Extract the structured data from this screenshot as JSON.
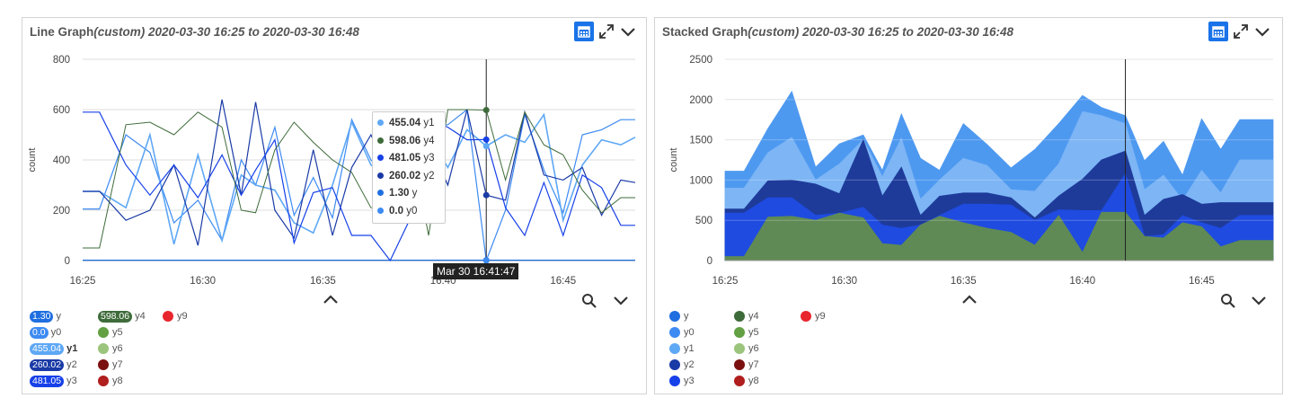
{
  "colors": {
    "y": "#1f6fe0",
    "y0": "#3d8bf2",
    "y1": "#5ea8f5",
    "y2": "#1a3aa6",
    "y3": "#1640e8",
    "y4": "#3e6b3a",
    "y5": "#62a043",
    "y6": "#9bc47c",
    "y7": "#7a1010",
    "y8": "#b01e1e",
    "y9": "#e8262e"
  },
  "line_panel": {
    "title_main": "Line Graph",
    "title_custom": "(custom)",
    "title_range": "2020-03-30 16:25 to 2020-03-30 16:48",
    "tooltip_rows": [
      {
        "value": "455.04",
        "name": "y1",
        "color": "#5ea8f5"
      },
      {
        "value": "598.06",
        "name": "y4",
        "color": "#3e6b3a"
      },
      {
        "value": "481.05",
        "name": "y3",
        "color": "#1640e8"
      },
      {
        "value": "260.02",
        "name": "y2",
        "color": "#1a3aa6"
      },
      {
        "value": "1.30",
        "name": "y",
        "color": "#1f6fe0"
      },
      {
        "value": "0.0",
        "name": "y0",
        "color": "#3d8bf2"
      }
    ],
    "x_tooltip": "Mar 30 16:41:47",
    "legend": [
      {
        "name": "y",
        "value": "1.30",
        "bold": false
      },
      {
        "name": "y0",
        "value": "0.0",
        "bold": false
      },
      {
        "name": "y1",
        "value": "455.04",
        "bold": true
      },
      {
        "name": "y2",
        "value": "260.02",
        "bold": false
      },
      {
        "name": "y3",
        "value": "481.05",
        "bold": false
      },
      {
        "name": "y4",
        "value": "598.06",
        "bold": false
      },
      {
        "name": "y5",
        "value": "",
        "bold": false
      },
      {
        "name": "y6",
        "value": "",
        "bold": false
      },
      {
        "name": "y7",
        "value": "",
        "bold": false
      },
      {
        "name": "y8",
        "value": "",
        "bold": false
      },
      {
        "name": "y9",
        "value": "",
        "bold": false
      }
    ]
  },
  "stack_panel": {
    "title_main": "Stacked Graph",
    "title_custom": "(custom)",
    "title_range": "2020-03-30 16:25 to 2020-03-30 16:48",
    "legend": [
      "y",
      "y0",
      "y1",
      "y2",
      "y3",
      "y4",
      "y5",
      "y6",
      "y7",
      "y8",
      "y9"
    ]
  },
  "chart_data": [
    {
      "type": "line",
      "title": "Line Graph(custom) 2020-03-30 16:25 to 2020-03-30 16:48",
      "ylabel": "count",
      "xlabel": "",
      "ylim": [
        0,
        800
      ],
      "yticks": [
        "0",
        "200",
        "400",
        "600",
        "800"
      ],
      "xlim": [
        0,
        23
      ],
      "xticks": [
        {
          "v": 0,
          "label": "16:25"
        },
        {
          "v": 5,
          "label": "16:30"
        },
        {
          "v": 10,
          "label": "16:35"
        },
        {
          "v": 15,
          "label": "16:40"
        },
        {
          "v": 20,
          "label": "16:45"
        }
      ],
      "cursor_x": 16.8,
      "x": [
        0,
        0.7,
        1.8,
        2.8,
        3.8,
        4.8,
        5.8,
        6.6,
        7.2,
        8.0,
        8.8,
        9.6,
        10.4,
        11.2,
        12.0,
        12.8,
        13.6,
        14.4,
        15.2,
        16.0,
        16.8,
        17.6,
        18.4,
        19.2,
        20.0,
        20.8,
        21.6,
        22.4,
        23.0
      ],
      "series": [
        {
          "name": "y",
          "values": [
            1.3,
            1.3,
            1.3,
            1.3,
            1.3,
            1.3,
            1.3,
            1.3,
            1.3,
            1.3,
            1.3,
            1.3,
            1.3,
            1.3,
            1.3,
            1.3,
            1.3,
            1.3,
            1.3,
            1.3,
            1.3,
            1.3,
            1.3,
            1.3,
            1.3,
            1.3,
            1.3,
            1.3,
            1.3
          ]
        },
        {
          "name": "y0",
          "values": [
            205,
            205,
            500,
            430,
            150,
            240,
            80,
            400,
            300,
            530,
            180,
            330,
            170,
            560,
            400,
            320,
            250,
            530,
            540,
            600,
            0,
            200,
            580,
            360,
            190,
            500,
            520,
            560,
            560
          ]
        },
        {
          "name": "y1",
          "values": [
            275,
            275,
            210,
            500,
            65,
            420,
            80,
            340,
            300,
            280,
            150,
            110,
            300,
            550,
            380,
            330,
            250,
            500,
            370,
            520,
            455,
            500,
            470,
            580,
            160,
            380,
            480,
            460,
            490
          ]
        },
        {
          "name": "y2",
          "values": [
            275,
            275,
            160,
            200,
            380,
            60,
            640,
            260,
            630,
            200,
            90,
            440,
            100,
            370,
            500,
            330,
            320,
            470,
            300,
            600,
            260,
            240,
            590,
            340,
            320,
            370,
            180,
            320,
            310
          ]
        },
        {
          "name": "y3",
          "values": [
            590,
            590,
            380,
            260,
            380,
            250,
            420,
            260,
            360,
            480,
            70,
            270,
            290,
            100,
            100,
            0,
            160,
            560,
            530,
            480,
            481,
            210,
            100,
            310,
            100,
            340,
            290,
            140,
            140
          ]
        },
        {
          "name": "y4",
          "values": [
            50,
            50,
            540,
            550,
            500,
            590,
            530,
            200,
            190,
            440,
            550,
            470,
            400,
            350,
            210,
            200,
            500,
            100,
            600,
            600,
            598,
            320,
            590,
            460,
            420,
            280,
            190,
            250,
            250
          ]
        }
      ]
    },
    {
      "type": "area",
      "title": "Stacked Graph(custom) 2020-03-30 16:25 to 2020-03-30 16:48",
      "ylabel": "count",
      "xlabel": "",
      "stacked": true,
      "ylim": [
        0,
        2500
      ],
      "yticks": [
        "0",
        "500",
        "1000",
        "1500",
        "2000",
        "2500"
      ],
      "xlim": [
        0,
        23
      ],
      "xticks": [
        {
          "v": 0,
          "label": "16:25"
        },
        {
          "v": 5,
          "label": "16:30"
        },
        {
          "v": 10,
          "label": "16:35"
        },
        {
          "v": 15,
          "label": "16:40"
        },
        {
          "v": 20,
          "label": "16:45"
        }
      ],
      "cursor_x": 16.8,
      "x": [
        0,
        0.8,
        1.8,
        2.8,
        3.8,
        4.8,
        5.8,
        6.6,
        7.4,
        8.2,
        9.0,
        10.0,
        11.0,
        12.0,
        13.0,
        14.0,
        15.0,
        15.8,
        16.8,
        17.6,
        18.4,
        19.2,
        20.0,
        20.8,
        21.6,
        22.4,
        23.0
      ],
      "totals": [
        [
          50,
          50,
          540,
          550,
          500,
          590,
          530,
          210,
          190,
          440,
          550,
          470,
          400,
          350,
          190,
          560,
          100,
          600,
          600,
          300,
          280,
          470,
          420,
          170,
          250,
          250,
          250
        ],
        [
          590,
          590,
          780,
          780,
          560,
          590,
          660,
          440,
          400,
          440,
          560,
          700,
          700,
          690,
          500,
          630,
          620,
          620,
          1080,
          300,
          320,
          560,
          470,
          400,
          560,
          560,
          560
        ],
        [
          640,
          640,
          990,
          1000,
          950,
          830,
          1500,
          800,
          1160,
          560,
          800,
          840,
          840,
          780,
          530,
          800,
          1010,
          1250,
          1360,
          560,
          760,
          820,
          700,
          720,
          720,
          720,
          720
        ],
        [
          900,
          900,
          1340,
          1530,
          1000,
          1200,
          1500,
          1040,
          1520,
          760,
          1000,
          1270,
          1180,
          880,
          860,
          1200,
          1850,
          1800,
          1700,
          880,
          1060,
          750,
          1120,
          840,
          1250,
          1250,
          1250
        ],
        [
          1110,
          1110,
          1640,
          2100,
          1160,
          1450,
          1560,
          1120,
          1820,
          1270,
          1120,
          1700,
          1440,
          1150,
          1380,
          1700,
          2050,
          1900,
          1800,
          1240,
          1480,
          1060,
          1760,
          1380,
          1750,
          1750,
          1750
        ]
      ],
      "layers": [
        "y4",
        "y3",
        "y2",
        "y1",
        "y0"
      ]
    }
  ]
}
